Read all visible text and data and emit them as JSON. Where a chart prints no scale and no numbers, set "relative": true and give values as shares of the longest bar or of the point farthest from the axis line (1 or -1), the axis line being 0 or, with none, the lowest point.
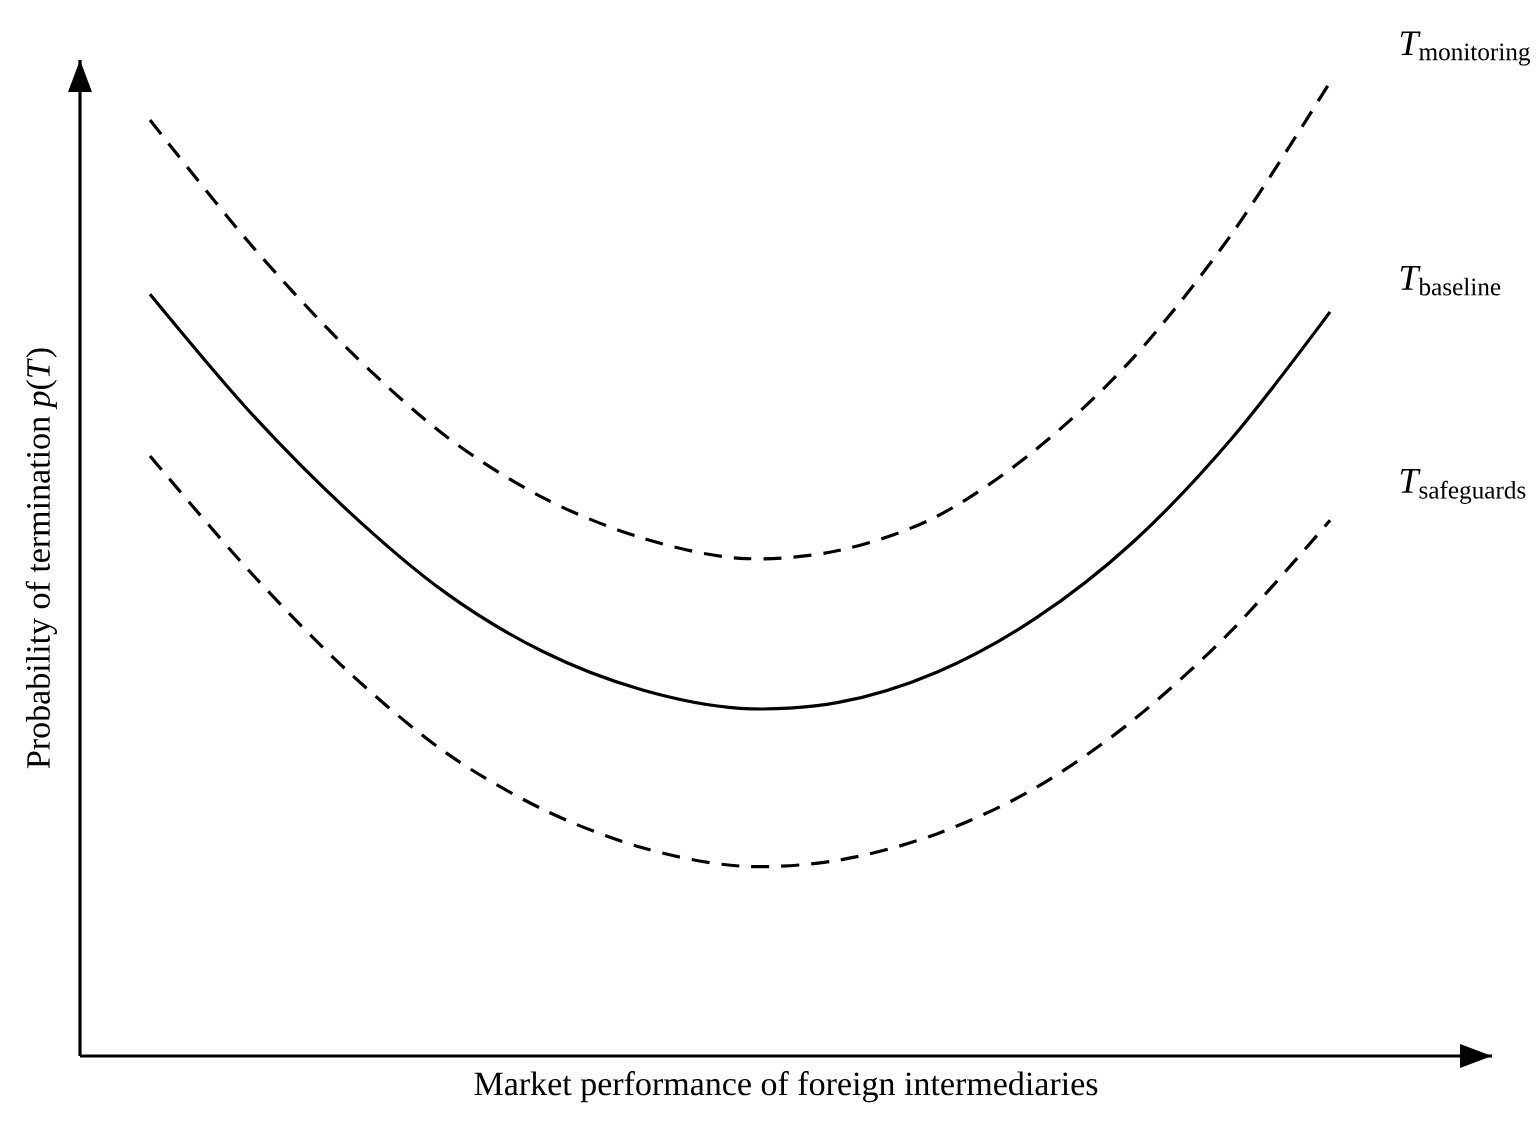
{
  "chart_data": {
    "type": "line",
    "relative": true,
    "marker": "none",
    "xlabel": "Market performance of foreign intermediaries",
    "ylabel": "Probability of termination *p*(*T*)",
    "categories": [
      null,
      null,
      null,
      null,
      null,
      null,
      null,
      null,
      null,
      null,
      null,
      null,
      null
    ],
    "series": [
      {
        "name": "\\mathit{T}_{\\mathrm{monitoring}}",
        "color": "#000000",
        "line_style": "dashed",
        "values": [
          0.961,
          0.836,
          0.727,
          0.637,
          0.573,
          0.532,
          0.511,
          0.519,
          0.554,
          0.622,
          0.717,
          0.844,
          1
        ]
      },
      {
        "name": "\\mathit{T}_{\\mathrm{baseline}}",
        "color": "#000000",
        "line_style": "solid",
        "values": [
          0.782,
          0.663,
          0.561,
          0.476,
          0.415,
          0.376,
          0.357,
          0.363,
          0.394,
          0.449,
          0.528,
          0.634,
          0.764
        ]
      },
      {
        "name": "\\mathit{T}_{\\mathrm{safeguards}}",
        "color": "#000000",
        "line_style": "dashed",
        "values": [
          0.616,
          0.499,
          0.396,
          0.312,
          0.253,
          0.214,
          0.195,
          0.201,
          0.228,
          0.275,
          0.345,
          0.437,
          0.55
        ]
      }
    ]
  }
}
